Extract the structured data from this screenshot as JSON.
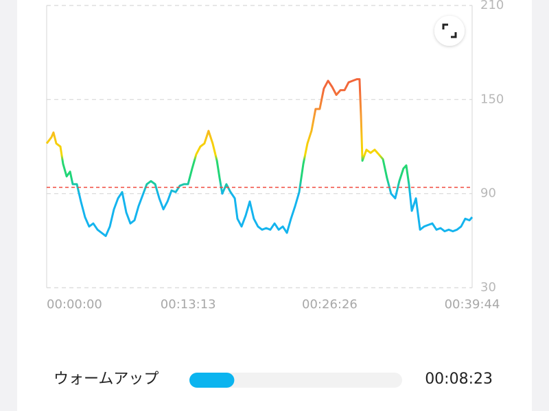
{
  "chart_data": {
    "type": "line",
    "x": [
      0,
      27,
      38,
      54,
      77,
      92,
      112,
      131,
      146,
      169,
      192,
      215,
      238,
      261,
      285,
      308,
      331,
      354,
      377,
      400,
      423,
      446,
      469,
      492,
      515,
      538,
      561,
      584,
      608,
      631,
      654,
      677,
      700,
      723,
      746,
      769,
      792,
      815,
      838,
      861,
      884,
      907,
      930,
      954,
      969,
      984,
      1007,
      1030,
      1054,
      1069,
      1092,
      1115,
      1138,
      1161,
      1184,
      1207,
      1230,
      1253,
      1277,
      1300,
      1323,
      1346,
      1369,
      1392,
      1415,
      1438,
      1461,
      1484,
      1507,
      1530,
      1553,
      1577,
      1600,
      1623,
      1646,
      1669,
      1692,
      1715,
      1738,
      1753,
      1761,
      1769,
      1792,
      1815,
      1838,
      1861,
      1884,
      1907,
      1930,
      1953,
      1976,
      1999,
      2015,
      2030,
      2046,
      2069,
      2092,
      2115,
      2138,
      2161,
      2184,
      2207,
      2230,
      2253,
      2276,
      2299,
      2322,
      2345,
      2369,
      2384
    ],
    "values": [
      122,
      126,
      129,
      122,
      120,
      109,
      101,
      104,
      96,
      96,
      85,
      75,
      69,
      71,
      67,
      65,
      63,
      69,
      80,
      87,
      91,
      78,
      71,
      73,
      82,
      89,
      96,
      98,
      96,
      87,
      80,
      85,
      92,
      91,
      95,
      96,
      96,
      106,
      115,
      120,
      122,
      130,
      122,
      111,
      100,
      90,
      96,
      91,
      87,
      74,
      69,
      76,
      85,
      74,
      69,
      67,
      68,
      67,
      71,
      67,
      69,
      65,
      74,
      82,
      91,
      109,
      122,
      130,
      144,
      144,
      157,
      162,
      158,
      153,
      156,
      156,
      161,
      162,
      163,
      163,
      140,
      111,
      118,
      116,
      118,
      115,
      112,
      100,
      90,
      87,
      98,
      106,
      108,
      96,
      79,
      87,
      67,
      69,
      70,
      71,
      67,
      68,
      66,
      67,
      66,
      67,
      69,
      74,
      73,
      75
    ],
    "xlim": [
      0,
      2384
    ],
    "xticks": [
      {
        "value": 0,
        "label": "00:00:00"
      },
      {
        "value": 793,
        "label": "00:13:13"
      },
      {
        "value": 1586,
        "label": "00:26:26"
      },
      {
        "value": 2384,
        "label": "00:39:44"
      }
    ],
    "ylim": [
      30,
      210
    ],
    "yticks": [
      30,
      90,
      150,
      210
    ],
    "grid": true,
    "reference_line": 94,
    "reference_color": "#f0483c"
  },
  "zone": {
    "label": "ウォームアップ",
    "duration": "00:08:23",
    "color": "#0bb4ef"
  }
}
